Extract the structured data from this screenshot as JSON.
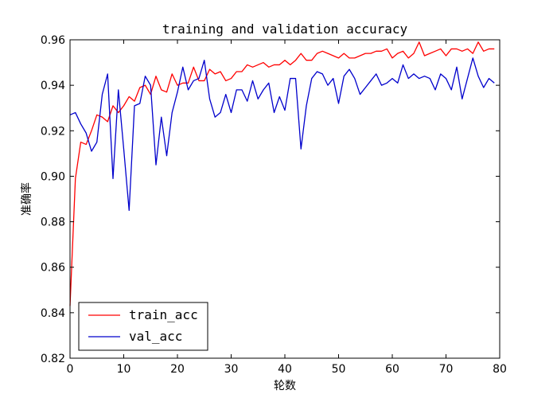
{
  "chart_data": {
    "type": "line",
    "title": "training and validation accuracy",
    "xlabel": "轮数",
    "ylabel": "准确率",
    "xlim": [
      0,
      80
    ],
    "ylim": [
      0.82,
      0.96
    ],
    "xticks": [
      "0",
      "10",
      "20",
      "30",
      "40",
      "50",
      "60",
      "70",
      "80"
    ],
    "yticks": [
      "0.82",
      "0.84",
      "0.86",
      "0.88",
      "0.90",
      "0.92",
      "0.94",
      "0.96"
    ],
    "grid": false,
    "legend_position": "lower-left",
    "x": [
      0,
      1,
      2,
      3,
      4,
      5,
      6,
      7,
      8,
      9,
      10,
      11,
      12,
      13,
      14,
      15,
      16,
      17,
      18,
      19,
      20,
      21,
      22,
      23,
      24,
      25,
      26,
      27,
      28,
      29,
      30,
      31,
      32,
      33,
      34,
      35,
      36,
      37,
      38,
      39,
      40,
      41,
      42,
      43,
      44,
      45,
      46,
      47,
      48,
      49,
      50,
      51,
      52,
      53,
      54,
      55,
      56,
      57,
      58,
      59,
      60,
      61,
      62,
      63,
      64,
      65,
      66,
      67,
      68,
      69,
      70,
      71,
      72,
      73,
      74,
      75,
      76,
      77,
      78,
      79
    ],
    "series": [
      {
        "name": "train_acc",
        "color": "#ff0000",
        "values": [
          0.843,
          0.899,
          0.915,
          0.914,
          0.92,
          0.927,
          0.926,
          0.924,
          0.931,
          0.928,
          0.931,
          0.935,
          0.933,
          0.939,
          0.94,
          0.936,
          0.944,
          0.938,
          0.937,
          0.945,
          0.94,
          0.941,
          0.941,
          0.948,
          0.942,
          0.942,
          0.947,
          0.945,
          0.946,
          0.942,
          0.943,
          0.946,
          0.946,
          0.949,
          0.948,
          0.949,
          0.95,
          0.948,
          0.949,
          0.949,
          0.951,
          0.949,
          0.951,
          0.954,
          0.951,
          0.951,
          0.954,
          0.955,
          0.954,
          0.953,
          0.952,
          0.954,
          0.952,
          0.952,
          0.953,
          0.954,
          0.954,
          0.955,
          0.955,
          0.956,
          0.952,
          0.954,
          0.955,
          0.952,
          0.954,
          0.959,
          0.953,
          0.954,
          0.955,
          0.956,
          0.953,
          0.956,
          0.956,
          0.955,
          0.956,
          0.954,
          0.959,
          0.955,
          0.956,
          0.956
        ]
      },
      {
        "name": "val_acc",
        "color": "#0000cc",
        "values": [
          0.927,
          0.928,
          0.923,
          0.919,
          0.911,
          0.915,
          0.936,
          0.945,
          0.899,
          0.938,
          0.912,
          0.885,
          0.931,
          0.932,
          0.944,
          0.94,
          0.905,
          0.926,
          0.909,
          0.928,
          0.937,
          0.948,
          0.938,
          0.942,
          0.943,
          0.951,
          0.934,
          0.926,
          0.928,
          0.936,
          0.928,
          0.938,
          0.938,
          0.933,
          0.942,
          0.934,
          0.938,
          0.941,
          0.928,
          0.935,
          0.929,
          0.943,
          0.943,
          0.912,
          0.931,
          0.943,
          0.946,
          0.945,
          0.94,
          0.943,
          0.932,
          0.944,
          0.947,
          0.943,
          0.936,
          0.939,
          0.942,
          0.945,
          0.94,
          0.941,
          0.943,
          0.941,
          0.949,
          0.943,
          0.945,
          0.943,
          0.944,
          0.943,
          0.938,
          0.945,
          0.943,
          0.938,
          0.948,
          0.934,
          0.943,
          0.952,
          0.944,
          0.939,
          0.943,
          0.941
        ]
      }
    ]
  }
}
